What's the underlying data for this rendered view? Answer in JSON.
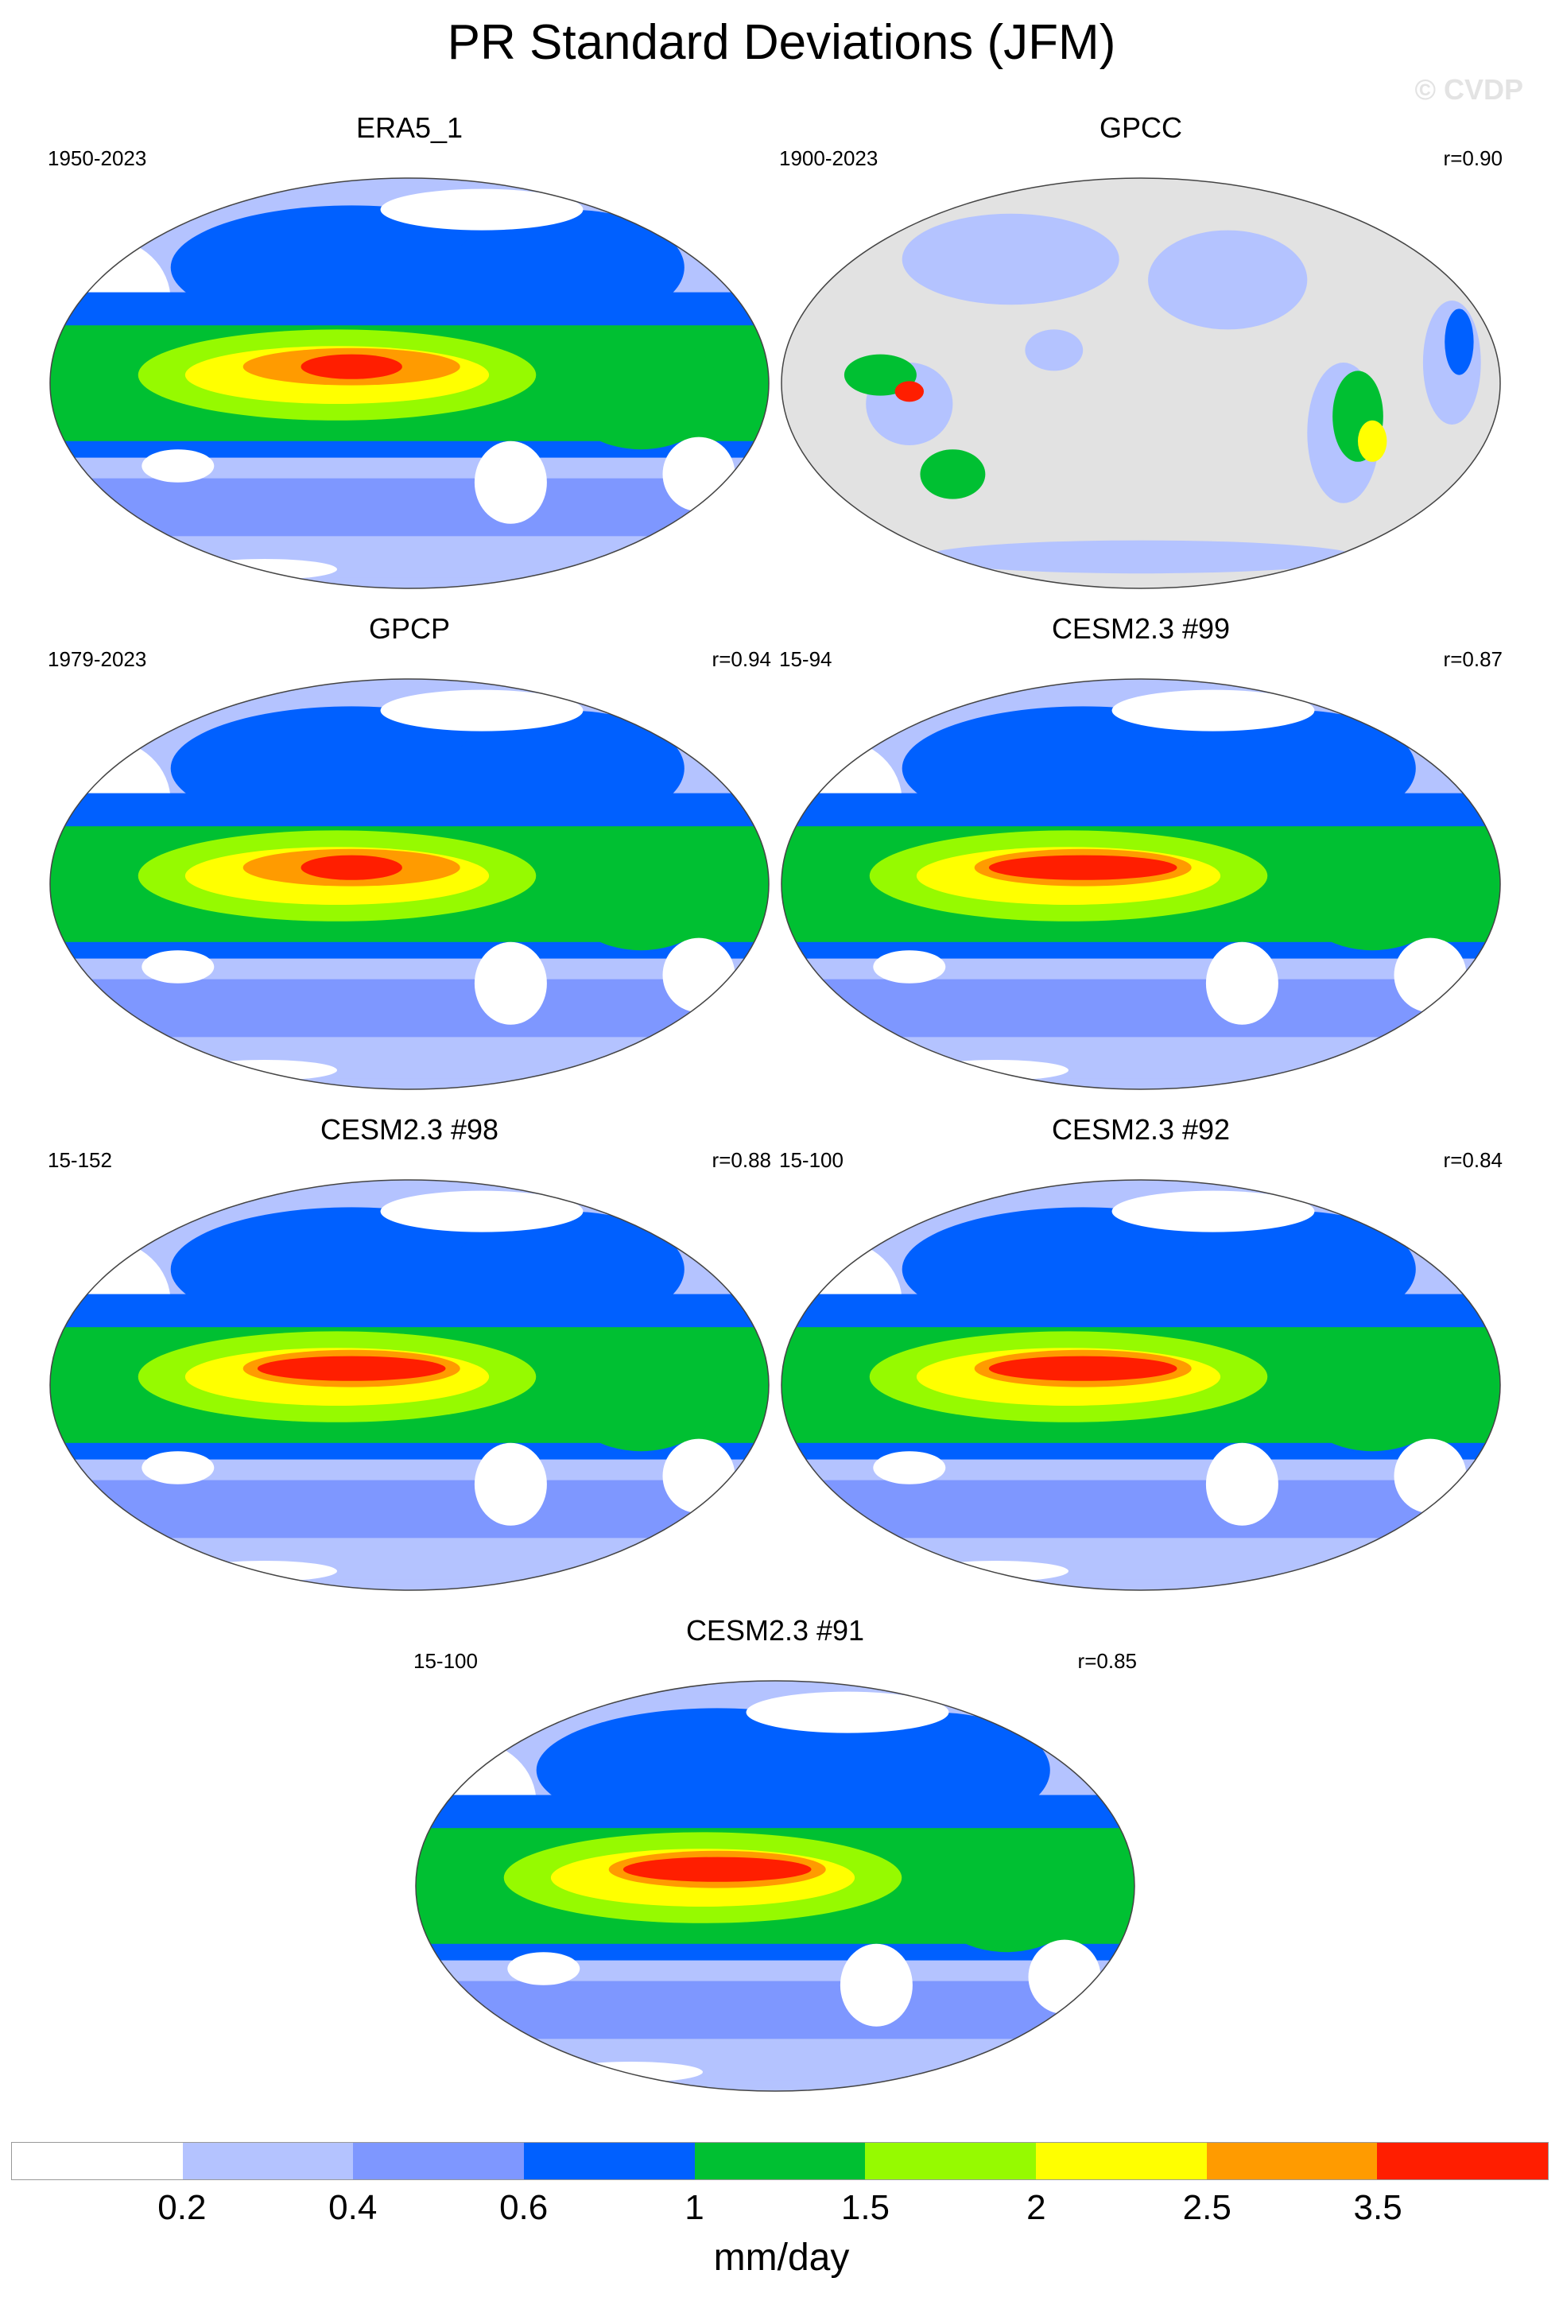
{
  "title": "PR Standard Deviations (JFM)",
  "watermark": "© CVDP",
  "panels": [
    {
      "name": "ERA5_1",
      "years": "1950-2023",
      "r": "",
      "style": "full"
    },
    {
      "name": "GPCC",
      "years": "1900-2023",
      "r": "r=0.90",
      "style": "land"
    },
    {
      "name": "GPCP",
      "years": "1979-2023",
      "r": "r=0.94",
      "style": "full"
    },
    {
      "name": "CESM2.3 #99",
      "years": "15-94",
      "r": "r=0.87",
      "style": "model"
    },
    {
      "name": "CESM2.3 #98",
      "years": "15-152",
      "r": "r=0.88",
      "style": "model"
    },
    {
      "name": "CESM2.3 #92",
      "years": "15-100",
      "r": "r=0.84",
      "style": "model"
    },
    {
      "name": "CESM2.3 #91",
      "years": "15-100",
      "r": "r=0.85",
      "style": "model"
    }
  ],
  "colorbar": {
    "colors": [
      "#ffffff",
      "#b4c3ff",
      "#7e97ff",
      "#0060ff",
      "#00c032",
      "#96fa00",
      "#ffff00",
      "#ff9b00",
      "#ff1e00"
    ],
    "labels": [
      "0.2",
      "0.4",
      "0.6",
      "1",
      "1.5",
      "2",
      "2.5",
      "3.5"
    ],
    "units": "mm/day"
  }
}
